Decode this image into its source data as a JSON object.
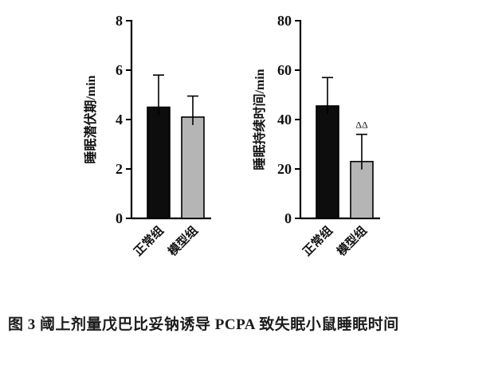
{
  "caption": "图 3  阈上剂量戊巴比妥钠诱导 PCPA 致失眠小鼠睡眠时间",
  "chart_data": [
    {
      "type": "bar",
      "title": "",
      "xlabel": "",
      "ylabel": "睡眠潜伏期/min",
      "categories": [
        "正常组",
        "模型组"
      ],
      "values": [
        4.5,
        4.1
      ],
      "errors_upper": [
        1.3,
        0.85
      ],
      "ylim": [
        0,
        8
      ],
      "yticks": [
        0,
        2,
        4,
        6,
        8
      ],
      "bar_colors": [
        "#0d0d0d",
        "#b5b5b5"
      ],
      "axis_color": "#000000",
      "grid": false,
      "legend": "none",
      "annotations": []
    },
    {
      "type": "bar",
      "title": "",
      "xlabel": "",
      "ylabel": "睡眠持续时间/min",
      "categories": [
        "正常组",
        "模型组"
      ],
      "values": [
        45.5,
        23
      ],
      "errors_upper": [
        11.5,
        11
      ],
      "ylim": [
        0,
        80
      ],
      "yticks": [
        0,
        20,
        40,
        60,
        80
      ],
      "bar_colors": [
        "#0d0d0d",
        "#b5b5b5"
      ],
      "axis_color": "#000000",
      "grid": false,
      "legend": "none",
      "annotations": [
        {
          "category_index": 1,
          "text": "ΔΔ"
        }
      ]
    }
  ]
}
